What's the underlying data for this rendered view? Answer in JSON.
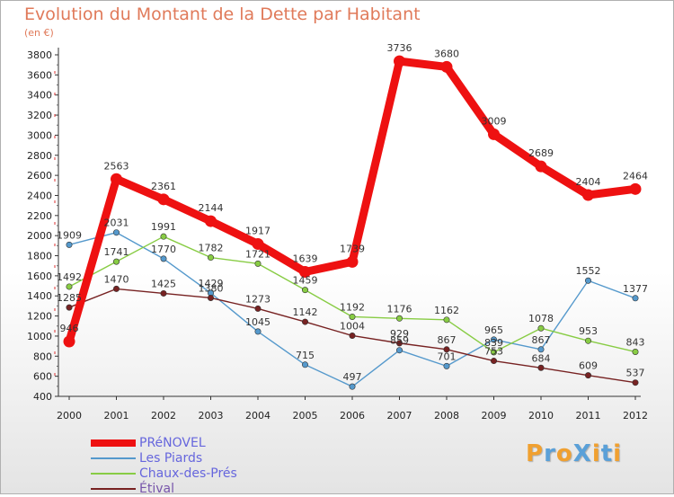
{
  "title": "Evolution du Montant de la Dette par Habitant",
  "subtitle": "(en €)",
  "brand": "ProXiti",
  "brand_colors": [
    "#f0a030",
    "#5aa0d8",
    "#f0a030",
    "#5aa0d8",
    "#f0a030",
    "#5aa0d8",
    "#f0a030"
  ],
  "chart_data": {
    "type": "line",
    "x": [
      "2000",
      "2001",
      "2002",
      "2003",
      "2004",
      "2005",
      "2006",
      "2007",
      "2008",
      "2009",
      "2010",
      "2011",
      "2012"
    ],
    "ylim": [
      400,
      3800
    ],
    "yticks": [
      400,
      600,
      800,
      1000,
      1200,
      1400,
      1600,
      1800,
      2000,
      2200,
      2400,
      2600,
      2800,
      3000,
      3200,
      3400,
      3600,
      3800
    ],
    "grid": false,
    "legend": "bottom-left",
    "series": [
      {
        "name": "PRéNOVEL",
        "color": "#ee1111",
        "values": [
          946,
          2563,
          2361,
          2144,
          1917,
          1639,
          1739,
          3736,
          3680,
          3009,
          2689,
          2404,
          2464
        ],
        "labels": [
          "946",
          "2563",
          "2361",
          "2144",
          "1917",
          "1639",
          "1739",
          "3736",
          "3680",
          "3009",
          "2689",
          "2404",
          "2464"
        ]
      },
      {
        "name": "Les Piards",
        "color": "#5599cc",
        "values": [
          1909,
          2031,
          1770,
          1429,
          1045,
          715,
          497,
          859,
          701,
          965,
          867,
          1552,
          1377
        ],
        "labels": [
          "1909",
          "2031",
          "1770",
          "1429",
          "1045",
          "715",
          "497",
          "859",
          "701",
          "965",
          "867",
          "1552",
          "1377"
        ]
      },
      {
        "name": "Chaux-des-Prés",
        "color": "#88cc44",
        "values": [
          1492,
          1741,
          1991,
          1782,
          1721,
          1459,
          1192,
          1176,
          1162,
          839,
          1078,
          953,
          843
        ],
        "labels": [
          "1492",
          "1741",
          "1991",
          "1782",
          "1721",
          "1459",
          "1192",
          "1176",
          "1162",
          "839",
          "1078",
          "953",
          "843"
        ]
      },
      {
        "name": "Étival",
        "color": "#772222",
        "values": [
          1285,
          1470,
          1425,
          1380,
          1273,
          1142,
          1004,
          929,
          867,
          753,
          684,
          609,
          537
        ],
        "labels": [
          "1285",
          "1470",
          "1425",
          "1380",
          "1273",
          "1142",
          "1004",
          "929",
          "867",
          "753",
          "684",
          "609",
          "537"
        ]
      }
    ]
  }
}
